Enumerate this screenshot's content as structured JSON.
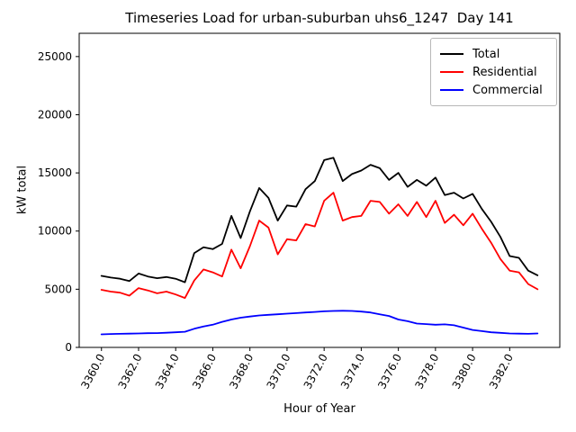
{
  "title": "Timeseries Load for urban-suburban uhs6_1247  Day 141",
  "chart_data": {
    "type": "line",
    "title": "Timeseries Load for urban-suburban uhs6_1247  Day 141",
    "xlabel": "Hour of Year",
    "ylabel": "kW total",
    "xlim": [
      3358.8,
      3384.7
    ],
    "ylim": [
      0,
      27000
    ],
    "grid": false,
    "legend_position": "upper right",
    "xtick_labels": [
      "3360.0",
      "3362.0",
      "3364.0",
      "3366.0",
      "3368.0",
      "3370.0",
      "3372.0",
      "3374.0",
      "3376.0",
      "3378.0",
      "3380.0",
      "3382.0"
    ],
    "xtick_values": [
      3360,
      3362,
      3364,
      3366,
      3368,
      3370,
      3372,
      3374,
      3376,
      3378,
      3380,
      3382
    ],
    "ytick_labels": [
      "0",
      "5000",
      "10000",
      "15000",
      "20000",
      "25000"
    ],
    "ytick_values": [
      0,
      5000,
      10000,
      15000,
      20000,
      25000
    ],
    "x": [
      3360.0,
      3360.5,
      3361.0,
      3361.5,
      3362.0,
      3362.5,
      3363.0,
      3363.5,
      3364.0,
      3364.5,
      3365.0,
      3365.5,
      3366.0,
      3366.5,
      3367.0,
      3367.5,
      3368.0,
      3368.5,
      3369.0,
      3369.5,
      3370.0,
      3370.5,
      3371.0,
      3371.5,
      3372.0,
      3372.5,
      3373.0,
      3373.5,
      3374.0,
      3374.5,
      3375.0,
      3375.5,
      3376.0,
      3376.5,
      3377.0,
      3377.5,
      3378.0,
      3378.5,
      3379.0,
      3379.5,
      3380.0,
      3380.5,
      3381.0,
      3381.5,
      3382.0,
      3382.5,
      3383.0,
      3383.5
    ],
    "series": [
      {
        "name": "Total",
        "color": "#000000",
        "values": [
          6150,
          6000,
          5900,
          5700,
          6350,
          6100,
          5950,
          6050,
          5900,
          5600,
          8100,
          8600,
          8450,
          8900,
          11300,
          9400,
          11700,
          13700,
          12850,
          10900,
          12200,
          12100,
          13600,
          14300,
          16100,
          16300,
          14300,
          14900,
          15200,
          15700,
          15400,
          14400,
          15000,
          13800,
          14400,
          13900,
          14600,
          13100,
          13300,
          12800,
          13200,
          11900,
          10800,
          9500,
          7850,
          7700,
          6600,
          6200
        ]
      },
      {
        "name": "Residential",
        "color": "#ff0000",
        "values": [
          4950,
          4800,
          4700,
          4450,
          5100,
          4900,
          4650,
          4800,
          4550,
          4250,
          5750,
          6700,
          6450,
          6100,
          8400,
          6800,
          8700,
          10900,
          10300,
          8000,
          9300,
          9200,
          10600,
          10400,
          12600,
          13300,
          10900,
          11200,
          11300,
          12600,
          12500,
          11500,
          12300,
          11300,
          12500,
          11200,
          12600,
          10700,
          11400,
          10500,
          11500,
          10200,
          9000,
          7600,
          6600,
          6450,
          5450,
          5000
        ]
      },
      {
        "name": "Commercial",
        "color": "#0000ff",
        "values": [
          1120,
          1150,
          1170,
          1180,
          1200,
          1220,
          1230,
          1260,
          1300,
          1350,
          1600,
          1800,
          1950,
          2200,
          2400,
          2550,
          2650,
          2750,
          2800,
          2850,
          2900,
          2950,
          3000,
          3050,
          3100,
          3130,
          3150,
          3130,
          3080,
          3000,
          2850,
          2700,
          2400,
          2250,
          2050,
          2000,
          1950,
          1980,
          1900,
          1700,
          1500,
          1400,
          1300,
          1250,
          1200,
          1180,
          1170,
          1200
        ]
      }
    ]
  },
  "colors": {
    "total": "#000000",
    "residential": "#ff0000",
    "commercial": "#0000ff",
    "axes": "#000000",
    "legend_border": "#b7b7b7",
    "background": "#ffffff"
  }
}
